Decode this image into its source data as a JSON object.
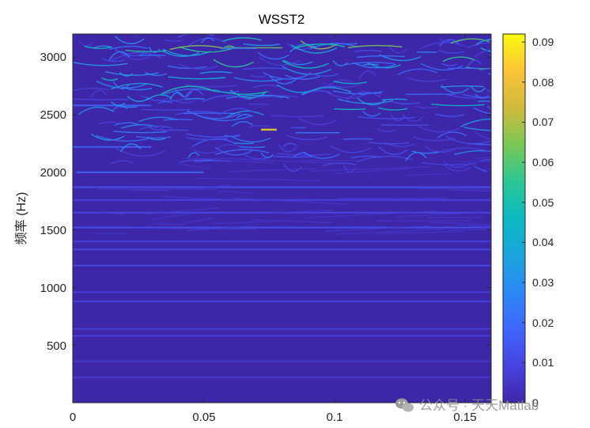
{
  "chart_data": {
    "type": "heatmap",
    "title": "WSST2",
    "xlabel": "",
    "ylabel": "频率 (Hz)",
    "xlim": [
      0,
      0.16
    ],
    "ylim": [
      0,
      3200
    ],
    "x_ticks": [
      "0",
      "0.05",
      "0.1",
      "0.15"
    ],
    "x_tick_values": [
      0,
      0.05,
      0.1,
      0.15
    ],
    "y_ticks": [
      "500",
      "1000",
      "1500",
      "2000",
      "2500",
      "3000"
    ],
    "y_tick_values": [
      500,
      1000,
      1500,
      2000,
      2500,
      3000
    ],
    "colorbar": {
      "colormap": "parula",
      "range": [
        0,
        0.092
      ],
      "ticks": [
        "0",
        "0.01",
        "0.02",
        "0.03",
        "0.04",
        "0.05",
        "0.06",
        "0.07",
        "0.08",
        "0.09"
      ],
      "tick_values": [
        0,
        0.01,
        0.02,
        0.03,
        0.04,
        0.05,
        0.06,
        0.07,
        0.08,
        0.09
      ]
    },
    "background_color": "#3e26a8",
    "ridges": [
      {
        "freq": 220,
        "x0": 0,
        "x1": 0.16,
        "v": 0.006
      },
      {
        "freq": 360,
        "x0": 0,
        "x1": 0.16,
        "v": 0.006
      },
      {
        "freq": 580,
        "x0": 0,
        "x1": 0.16,
        "v": 0.008
      },
      {
        "freq": 640,
        "x0": 0,
        "x1": 0.16,
        "v": 0.008
      },
      {
        "freq": 880,
        "x0": 0,
        "x1": 0.16,
        "v": 0.008
      },
      {
        "freq": 960,
        "x0": 0,
        "x1": 0.16,
        "v": 0.007
      },
      {
        "freq": 1190,
        "x0": 0,
        "x1": 0.16,
        "v": 0.01
      },
      {
        "freq": 1330,
        "x0": 0,
        "x1": 0.16,
        "v": 0.01
      },
      {
        "freq": 1400,
        "x0": 0,
        "x1": 0.16,
        "v": 0.008
      },
      {
        "freq": 1520,
        "x0": 0,
        "x1": 0.16,
        "v": 0.012
      },
      {
        "freq": 1650,
        "x0": 0,
        "x1": 0.16,
        "v": 0.01
      },
      {
        "freq": 1760,
        "x0": 0,
        "x1": 0.16,
        "v": 0.009
      },
      {
        "freq": 1870,
        "x0": 0,
        "x1": 0.16,
        "v": 0.012
      },
      {
        "freq": 2000,
        "x0": 0,
        "x1": 0.05,
        "v": 0.018
      },
      {
        "freq": 2220,
        "x0": 0,
        "x1": 0.03,
        "v": 0.016
      },
      {
        "freq": 2580,
        "x0": 0,
        "x1": 0.03,
        "v": 0.016
      },
      {
        "freq": 2370,
        "x0": 0.072,
        "x1": 0.078,
        "v": 0.075
      }
    ]
  },
  "watermark": "公众号 · 天天Matlab"
}
